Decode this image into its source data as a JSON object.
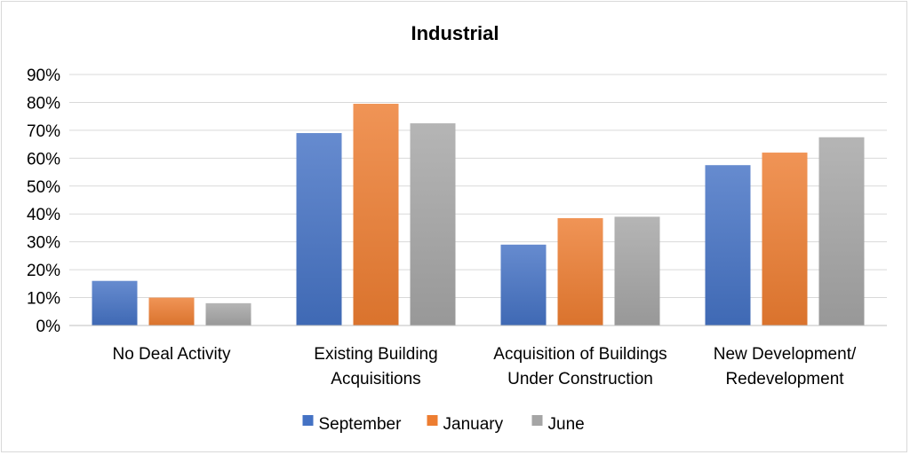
{
  "chart_data": {
    "type": "bar",
    "title": "Industrial",
    "xlabel": "",
    "ylabel": "",
    "ylim": [
      0,
      90
    ],
    "yticks": [
      "0%",
      "10%",
      "20%",
      "30%",
      "40%",
      "50%",
      "60%",
      "70%",
      "80%",
      "90%"
    ],
    "grid": true,
    "legend_position": "bottom",
    "categories": [
      [
        "No Deal Activity"
      ],
      [
        "Existing Building",
        "Acquisitions"
      ],
      [
        "Acquisition of Buildings",
        "Under Construction"
      ],
      [
        "New Development/",
        "Redevelopment"
      ]
    ],
    "series": [
      {
        "name": "September",
        "values": [
          16,
          69,
          29,
          57.5
        ],
        "color": "#4472c4"
      },
      {
        "name": "January",
        "values": [
          10,
          79.5,
          38.5,
          62
        ],
        "color": "#ed7d31"
      },
      {
        "name": "June",
        "values": [
          8,
          72.5,
          39,
          67.5
        ],
        "color": "#a5a5a5"
      }
    ]
  }
}
